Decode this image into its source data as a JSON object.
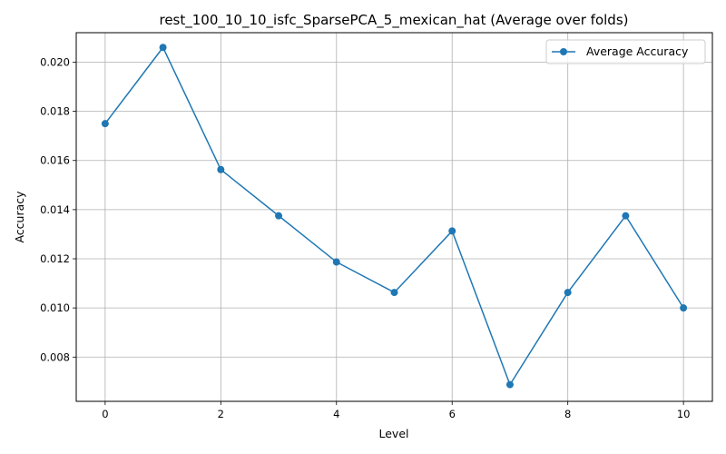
{
  "chart_data": {
    "type": "line",
    "title": "rest_100_10_10_isfc_SparsePCA_5_mexican_hat (Average over folds)",
    "xlabel": "Level",
    "ylabel": "Accuracy",
    "xlim": [
      -0.5,
      10.5
    ],
    "ylim": [
      0.0062,
      0.0212
    ],
    "xticks": [
      0,
      2,
      4,
      6,
      8,
      10
    ],
    "yticks": [
      0.008,
      0.01,
      0.012,
      0.014,
      0.016,
      0.018,
      0.02
    ],
    "ytick_labels": [
      "0.008",
      "0.010",
      "0.012",
      "0.014",
      "0.016",
      "0.018",
      "0.020"
    ],
    "grid": true,
    "legend_position": "top-right",
    "series": [
      {
        "name": "Average Accuracy",
        "color": "#1f77b4",
        "marker": "circle",
        "x": [
          0,
          1,
          2,
          3,
          4,
          5,
          6,
          7,
          8,
          9,
          10
        ],
        "y": [
          0.0175,
          0.0206,
          0.01563,
          0.01375,
          0.01187,
          0.01063,
          0.01313,
          0.00688,
          0.01063,
          0.01375,
          0.01
        ]
      }
    ]
  }
}
